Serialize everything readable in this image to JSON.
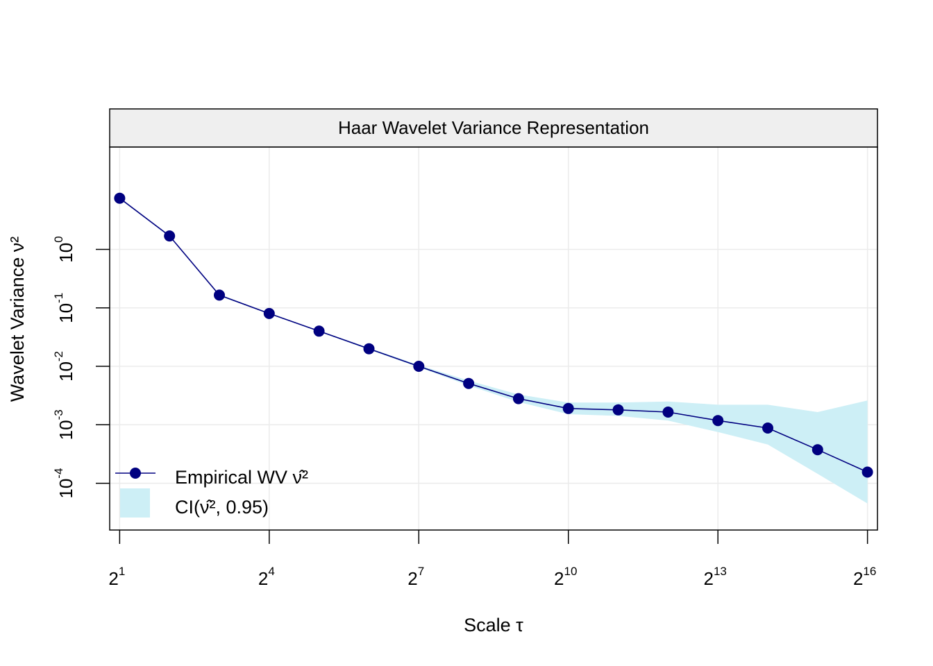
{
  "chart_data": {
    "type": "line",
    "title": "Haar Wavelet Variance Representation",
    "xlabel": "Scale τ",
    "ylabel": "Wavelet Variance ν²",
    "x_scale": "log2",
    "y_scale": "log10",
    "xlim_exponent": [
      0.8,
      16.2
    ],
    "ylim_exponent": [
      -4.8,
      1.75
    ],
    "x_ticks": [
      {
        "base": "2",
        "exp": "1",
        "value": 2
      },
      {
        "base": "2",
        "exp": "4",
        "value": 16
      },
      {
        "base": "2",
        "exp": "7",
        "value": 128
      },
      {
        "base": "2",
        "exp": "10",
        "value": 1024
      },
      {
        "base": "2",
        "exp": "13",
        "value": 8192
      },
      {
        "base": "2",
        "exp": "16",
        "value": 65536
      }
    ],
    "y_ticks": [
      {
        "base": "10",
        "exp": "0",
        "value": 1
      },
      {
        "base": "10",
        "exp": "-1",
        "value": 0.1
      },
      {
        "base": "10",
        "exp": "-2",
        "value": 0.01
      },
      {
        "base": "10",
        "exp": "-3",
        "value": 0.001
      },
      {
        "base": "10",
        "exp": "-4",
        "value": 0.0001
      }
    ],
    "grid": true,
    "legend_position": "bottom-left",
    "series": [
      {
        "name": "Empirical WV ν̂²",
        "color": "#000080",
        "x": [
          2,
          4,
          8,
          16,
          32,
          64,
          128,
          256,
          512,
          1024,
          2048,
          4096,
          8192,
          16384,
          32768,
          65536
        ],
        "y": [
          7.5,
          1.7,
          0.165,
          0.08,
          0.04,
          0.02,
          0.01,
          0.0051,
          0.0028,
          0.0019,
          0.0018,
          0.00165,
          0.00118,
          0.00088,
          0.000375,
          0.000155
        ],
        "ci_lower": [
          7.3,
          1.65,
          0.16,
          0.078,
          0.039,
          0.0193,
          0.0096,
          0.0047,
          0.00245,
          0.00152,
          0.00142,
          0.00118,
          0.00075,
          0.00046,
          0.000145,
          4.5e-05
        ],
        "ci_upper": [
          7.7,
          1.75,
          0.17,
          0.082,
          0.041,
          0.0207,
          0.0105,
          0.0057,
          0.0033,
          0.0024,
          0.0024,
          0.0025,
          0.0022,
          0.0022,
          0.00165,
          0.0026
        ]
      }
    ],
    "ci_name": "CI(ν̂², 0.95)",
    "ci_color": "#cdeff6",
    "line_color": "#000080"
  }
}
